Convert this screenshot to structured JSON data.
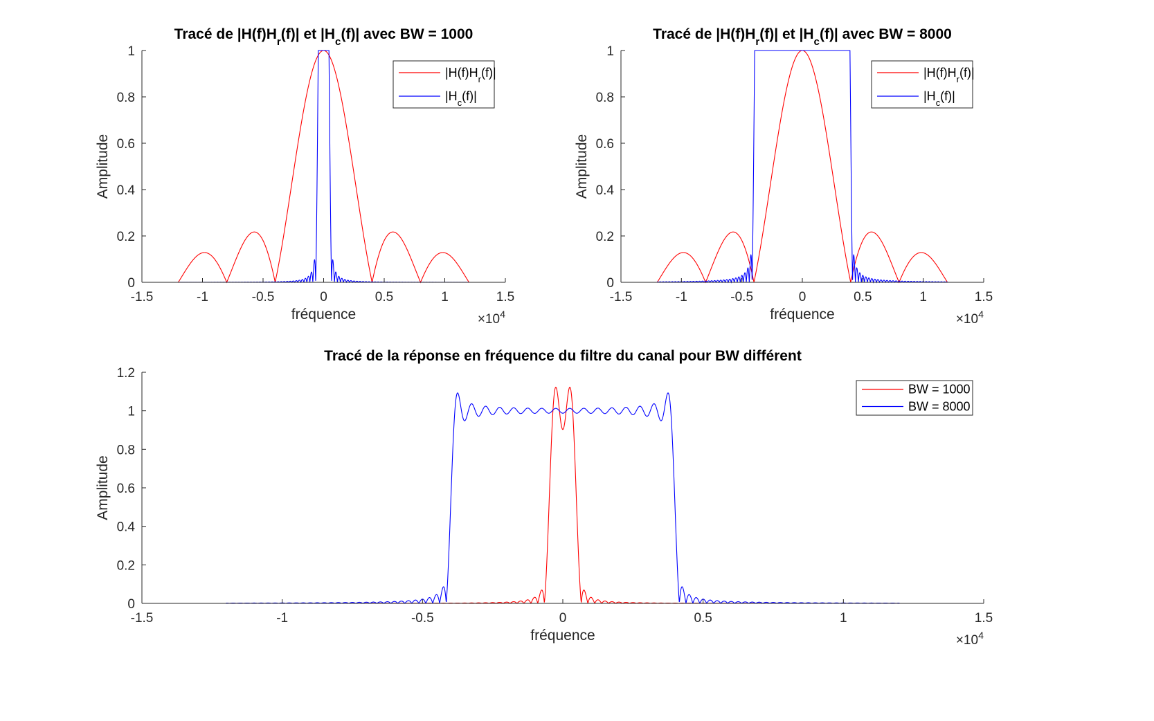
{
  "chart_data": [
    {
      "type": "line",
      "title_segments": [
        {
          "t": "Tracé de |H(f)H"
        },
        {
          "t": "r",
          "sub": true
        },
        {
          "t": "(f)| et |H"
        },
        {
          "t": "c",
          "sub": true
        },
        {
          "t": "(f)| avec BW = 1000"
        }
      ],
      "xlabel": "fréquence",
      "ylabel": "Amplitude",
      "x_exponent": "×10",
      "x_exponent_power": "4",
      "xlim": [
        -15000,
        15000
      ],
      "ylim": [
        0,
        1
      ],
      "xticks": [
        -15000,
        -10000,
        -5000,
        0,
        5000,
        10000,
        15000
      ],
      "xtick_labels": [
        "-1.5",
        "-1",
        "-0.5",
        "0",
        "0.5",
        "1",
        "1.5"
      ],
      "yticks": [
        0,
        0.2,
        0.4,
        0.6,
        0.8,
        1
      ],
      "ytick_labels": [
        "0",
        "0.2",
        "0.4",
        "0.6",
        "0.8",
        "1"
      ],
      "legend_position": "top-right",
      "series": [
        {
          "key": "hhr",
          "color": "#ff0000",
          "legend_segments": [
            {
              "t": "|H(f)H"
            },
            {
              "t": "r",
              "sub": true
            },
            {
              "t": "(f)|"
            }
          ]
        },
        {
          "key": "hc",
          "bw": 1000,
          "color": "#0000ff",
          "legend_segments": [
            {
              "t": "|H"
            },
            {
              "t": "c",
              "sub": true
            },
            {
              "t": "(f)|"
            }
          ]
        }
      ]
    },
    {
      "type": "line",
      "title_segments": [
        {
          "t": "Tracé de |H(f)H"
        },
        {
          "t": "r",
          "sub": true
        },
        {
          "t": "(f)| et |H"
        },
        {
          "t": "c",
          "sub": true
        },
        {
          "t": "(f)| avec BW = 8000"
        }
      ],
      "xlabel": "fréquence",
      "ylabel": "Amplitude",
      "x_exponent": "×10",
      "x_exponent_power": "4",
      "xlim": [
        -15000,
        15000
      ],
      "ylim": [
        0,
        1
      ],
      "xticks": [
        -15000,
        -10000,
        -5000,
        0,
        5000,
        10000,
        15000
      ],
      "xtick_labels": [
        "-1.5",
        "-1",
        "-0.5",
        "0",
        "0.5",
        "1",
        "1.5"
      ],
      "yticks": [
        0,
        0.2,
        0.4,
        0.6,
        0.8,
        1
      ],
      "ytick_labels": [
        "0",
        "0.2",
        "0.4",
        "0.6",
        "0.8",
        "1"
      ],
      "legend_position": "top-right",
      "series": [
        {
          "key": "hhr",
          "color": "#ff0000",
          "legend_segments": [
            {
              "t": "|H(f)H"
            },
            {
              "t": "r",
              "sub": true
            },
            {
              "t": "(f)|"
            }
          ]
        },
        {
          "key": "hc",
          "bw": 8000,
          "color": "#0000ff",
          "legend_segments": [
            {
              "t": "|H"
            },
            {
              "t": "c",
              "sub": true
            },
            {
              "t": "(f)|"
            }
          ]
        }
      ]
    },
    {
      "type": "line",
      "title_segments": [
        {
          "t": "Tracé de la réponse en fréquence du filtre du canal pour BW différent"
        }
      ],
      "xlabel": "fréquence",
      "ylabel": "Amplitude",
      "x_exponent": "×10",
      "x_exponent_power": "4",
      "xlim": [
        -15000,
        15000
      ],
      "ylim": [
        0,
        1.2
      ],
      "xticks": [
        -15000,
        -10000,
        -5000,
        0,
        5000,
        10000,
        15000
      ],
      "xtick_labels": [
        "-1.5",
        "-1",
        "-0.5",
        "0",
        "0.5",
        "1",
        "1.5"
      ],
      "yticks": [
        0,
        0.2,
        0.4,
        0.6,
        0.8,
        1,
        1.2
      ],
      "ytick_labels": [
        "0",
        "0.2",
        "0.4",
        "0.6",
        "0.8",
        "1",
        "1.2"
      ],
      "legend_position": "top-right",
      "series": [
        {
          "key": "hc_raw",
          "bw": 1000,
          "color": "#ff0000",
          "legend_segments": [
            {
              "t": "BW = 1000"
            }
          ]
        },
        {
          "key": "hc_raw",
          "bw": 8000,
          "color": "#0000ff",
          "legend_segments": [
            {
              "t": "BW = 8000"
            }
          ]
        }
      ]
    }
  ]
}
